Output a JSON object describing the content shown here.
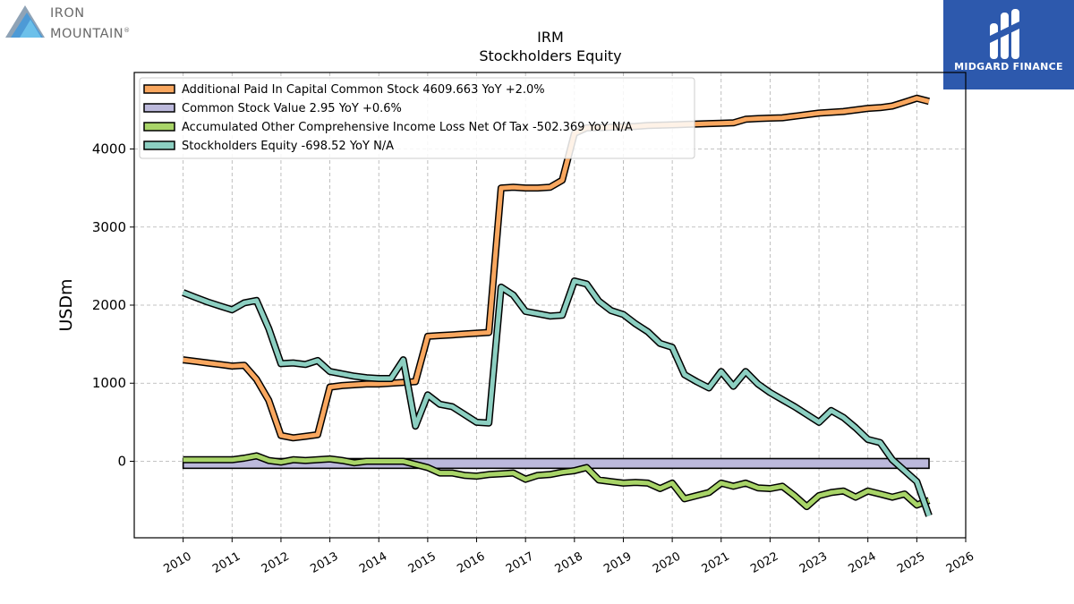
{
  "brand": {
    "line1": "IRON",
    "line2": "MOUNTAIN",
    "mark": "®"
  },
  "partner": {
    "name": "MIDGARD FINANCE"
  },
  "colors": {
    "paic": "#f9a75f",
    "csv": "#bcb9dc",
    "aoci": "#a8d468",
    "se": "#8ccfc1"
  },
  "chart_data": {
    "type": "line",
    "title": "IRM",
    "subtitle": "Stockholders  Equity",
    "ylabel": "USDm",
    "xlim": [
      2009.0,
      2026.0
    ],
    "ylim": [
      -980,
      4980
    ],
    "xticks": [
      2010,
      2011,
      2012,
      2013,
      2014,
      2015,
      2016,
      2017,
      2018,
      2019,
      2020,
      2021,
      2022,
      2023,
      2024,
      2025,
      2026
    ],
    "yticks": [
      0,
      1000,
      2000,
      3000,
      4000
    ],
    "grid": true,
    "legend": "top-left",
    "series": [
      {
        "key": "paic",
        "name": "Additional Paid In Capital Common Stock  4609.663 YoY +2.0%",
        "x": [
          2010.0,
          2010.25,
          2010.5,
          2010.75,
          2011.0,
          2011.25,
          2011.5,
          2011.75,
          2012.0,
          2012.25,
          2012.5,
          2012.75,
          2013.0,
          2013.25,
          2013.5,
          2013.75,
          2014.0,
          2014.25,
          2014.5,
          2014.75,
          2015.0,
          2015.25,
          2015.5,
          2015.75,
          2016.0,
          2016.25,
          2016.5,
          2016.75,
          2017.0,
          2017.25,
          2017.5,
          2017.75,
          2018.0,
          2018.25,
          2018.5,
          2018.75,
          2019.0,
          2019.25,
          2019.5,
          2019.75,
          2020.0,
          2020.25,
          2020.5,
          2020.75,
          2021.0,
          2021.25,
          2021.5,
          2021.75,
          2022.0,
          2022.25,
          2022.5,
          2022.75,
          2023.0,
          2023.25,
          2023.5,
          2023.75,
          2024.0,
          2024.25,
          2024.5,
          2024.75,
          2025.0,
          2025.25
        ],
        "y": [
          1300,
          1280,
          1260,
          1240,
          1220,
          1230,
          1050,
          780,
          330,
          300,
          320,
          340,
          950,
          970,
          980,
          990,
          990,
          1000,
          1010,
          1020,
          1600,
          1610,
          1620,
          1630,
          1640,
          1650,
          3500,
          3510,
          3500,
          3500,
          3510,
          3600,
          4200,
          4270,
          4275,
          4280,
          4285,
          4290,
          4300,
          4305,
          4310,
          4315,
          4320,
          4325,
          4330,
          4335,
          4380,
          4390,
          4395,
          4400,
          4420,
          4440,
          4460,
          4470,
          4480,
          4500,
          4520,
          4530,
          4550,
          4600,
          4650,
          4609.663
        ]
      },
      {
        "key": "csv",
        "name": "Common Stock Value  2.95 YoY +0.6%",
        "x": [
          2010.0,
          2025.25
        ],
        "y": [
          2.5,
          2.95
        ]
      },
      {
        "key": "aoci",
        "name": "Accumulated Other Comprehensive Income Loss Net Of Tax  -502.369 YoY N/A",
        "x": [
          2010.0,
          2010.25,
          2010.5,
          2010.75,
          2011.0,
          2011.25,
          2011.5,
          2011.75,
          2012.0,
          2012.25,
          2012.5,
          2012.75,
          2013.0,
          2013.25,
          2013.5,
          2013.75,
          2014.0,
          2014.25,
          2014.5,
          2014.75,
          2015.0,
          2015.25,
          2015.5,
          2015.75,
          2016.0,
          2016.25,
          2016.5,
          2016.75,
          2017.0,
          2017.25,
          2017.5,
          2017.75,
          2018.0,
          2018.25,
          2018.5,
          2018.75,
          2019.0,
          2019.25,
          2019.5,
          2019.75,
          2020.0,
          2020.25,
          2020.5,
          2020.75,
          2021.0,
          2021.25,
          2021.5,
          2021.75,
          2022.0,
          2022.25,
          2022.5,
          2022.75,
          2023.0,
          2023.25,
          2023.5,
          2023.75,
          2024.0,
          2024.25,
          2024.5,
          2024.75,
          2025.0,
          2025.25
        ],
        "y": [
          20,
          20,
          20,
          20,
          20,
          40,
          70,
          10,
          -10,
          20,
          10,
          20,
          30,
          10,
          -20,
          0,
          0,
          0,
          0,
          -40,
          -80,
          -150,
          -150,
          -180,
          -190,
          -170,
          -160,
          -150,
          -230,
          -180,
          -170,
          -140,
          -120,
          -80,
          -240,
          -260,
          -280,
          -270,
          -280,
          -350,
          -280,
          -480,
          -440,
          -400,
          -280,
          -320,
          -280,
          -340,
          -350,
          -320,
          -440,
          -580,
          -440,
          -400,
          -380,
          -460,
          -380,
          -420,
          -460,
          -420,
          -560,
          -502.369
        ]
      },
      {
        "key": "se",
        "name": "Stockholders Equity  -698.52 YoY N/A",
        "x": [
          2010.0,
          2010.25,
          2010.5,
          2010.75,
          2011.0,
          2011.25,
          2011.5,
          2011.75,
          2012.0,
          2012.25,
          2012.5,
          2012.75,
          2013.0,
          2013.25,
          2013.5,
          2013.75,
          2014.0,
          2014.25,
          2014.5,
          2014.75,
          2015.0,
          2015.25,
          2015.5,
          2015.75,
          2016.0,
          2016.25,
          2016.5,
          2016.75,
          2017.0,
          2017.25,
          2017.5,
          2017.75,
          2018.0,
          2018.25,
          2018.5,
          2018.75,
          2019.0,
          2019.25,
          2019.5,
          2019.75,
          2020.0,
          2020.25,
          2020.5,
          2020.75,
          2021.0,
          2021.25,
          2021.5,
          2021.75,
          2022.0,
          2022.25,
          2022.5,
          2022.75,
          2023.0,
          2023.25,
          2023.5,
          2023.75,
          2024.0,
          2024.25,
          2024.5,
          2024.75,
          2025.0,
          2025.25
        ],
        "y": [
          2160,
          2100,
          2040,
          1990,
          1940,
          2030,
          2060,
          1700,
          1250,
          1260,
          1240,
          1290,
          1150,
          1120,
          1090,
          1070,
          1060,
          1060,
          1300,
          450,
          850,
          730,
          700,
          600,
          500,
          490,
          2230,
          2130,
          1920,
          1890,
          1860,
          1870,
          2310,
          2270,
          2050,
          1930,
          1880,
          1760,
          1660,
          1510,
          1460,
          1110,
          1020,
          940,
          1150,
          960,
          1150,
          990,
          880,
          790,
          700,
          600,
          500,
          650,
          560,
          430,
          280,
          240,
          20,
          -120,
          -260,
          -698.52
        ]
      }
    ]
  }
}
